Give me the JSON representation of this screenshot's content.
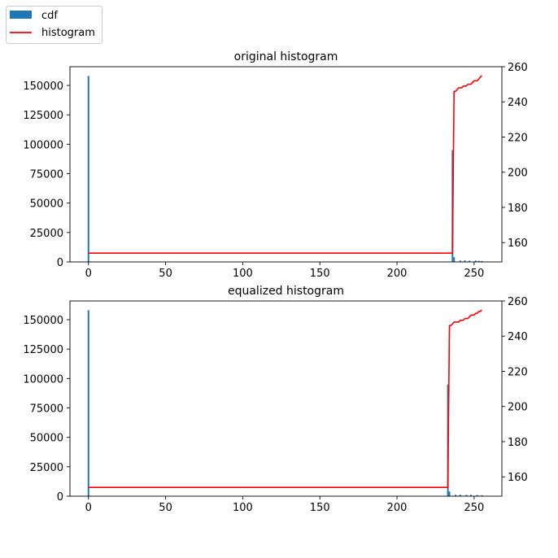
{
  "legend": {
    "items": [
      {
        "label": "cdf",
        "kind": "patch",
        "color": "#1f77b4"
      },
      {
        "label": "histogram",
        "kind": "line",
        "color": "#ff0000"
      }
    ],
    "placement": "top-left (figure)"
  },
  "chart_data": [
    {
      "type": "bar",
      "title": "original histogram",
      "xlabel": "",
      "ylabel": "",
      "xlim": [
        -12,
        268
      ],
      "ylim": [
        0,
        165900
      ],
      "xticks": [
        0,
        50,
        100,
        150,
        200,
        250
      ],
      "yticks": [
        0,
        25000,
        50000,
        75000,
        100000,
        125000,
        150000
      ],
      "y2lim": [
        149,
        260
      ],
      "y2ticks": [
        160,
        180,
        200,
        220,
        240,
        260
      ],
      "grid": false,
      "bars": {
        "name": "cdf",
        "color": "#1f77b4",
        "x": [
          0,
          236,
          237,
          241,
          244,
          247,
          251,
          253,
          255
        ],
        "values": [
          158000,
          95000,
          4000,
          1200,
          1300,
          1100,
          1200,
          1000,
          800
        ]
      },
      "line": {
        "name": "histogram",
        "color": "#ff0000",
        "axis": "right",
        "x": [
          0,
          235,
          236,
          237,
          238,
          239,
          240,
          241,
          242,
          243,
          244,
          245,
          246,
          247,
          248,
          249,
          250,
          251,
          252,
          253,
          254,
          255
        ],
        "y": [
          154,
          154,
          154,
          246,
          246,
          247,
          248,
          248,
          248,
          249,
          249,
          249,
          250,
          250,
          250,
          251,
          252,
          252,
          252,
          253,
          254,
          255
        ]
      }
    },
    {
      "type": "bar",
      "title": "equalized histogram",
      "xlabel": "",
      "ylabel": "",
      "xlim": [
        -12,
        268
      ],
      "ylim": [
        0,
        165900
      ],
      "xticks": [
        0,
        50,
        100,
        150,
        200,
        250
      ],
      "yticks": [
        0,
        25000,
        50000,
        75000,
        100000,
        125000,
        150000
      ],
      "y2lim": [
        149,
        260
      ],
      "y2ticks": [
        160,
        180,
        200,
        220,
        240,
        260
      ],
      "grid": false,
      "bars": {
        "name": "cdf",
        "color": "#1f77b4",
        "x": [
          0,
          233,
          234,
          238,
          241,
          245,
          248,
          252,
          255
        ],
        "values": [
          158000,
          95000,
          4000,
          1200,
          1300,
          1100,
          1200,
          1000,
          800
        ]
      },
      "line": {
        "name": "histogram",
        "color": "#ff0000",
        "axis": "right",
        "x": [
          0,
          232,
          233,
          234,
          235,
          236,
          237,
          238,
          239,
          240,
          241,
          242,
          243,
          244,
          245,
          246,
          247,
          248,
          249,
          250,
          251,
          252,
          253,
          254,
          255
        ],
        "y": [
          154,
          154,
          154,
          246,
          246,
          247,
          248,
          248,
          248,
          248,
          249,
          249,
          249,
          250,
          250,
          250,
          251,
          252,
          252,
          252,
          253,
          253,
          254,
          254,
          255
        ]
      }
    }
  ]
}
